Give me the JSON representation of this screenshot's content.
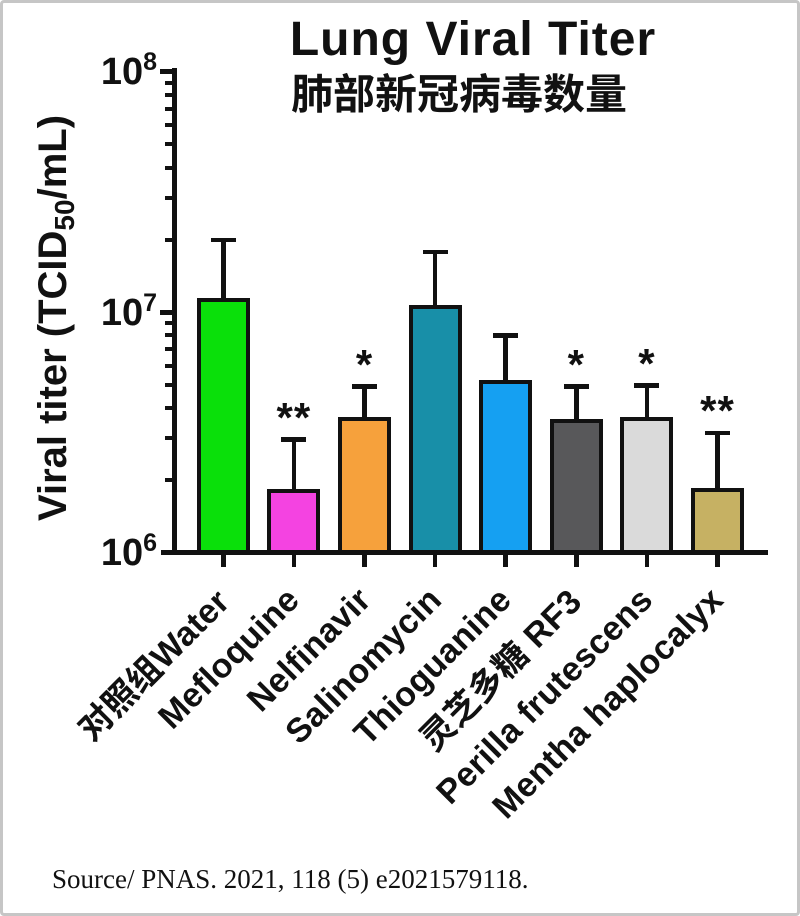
{
  "figure": {
    "source_note": "Source/ PNAS. 2021, 118 (5) e2021579118."
  },
  "y_axis": {
    "label_prefix": "Viral titer (TCID",
    "label_sub": "50",
    "label_suffix": "/mL)",
    "tick_labels": [
      {
        "base": "10",
        "exp": "8",
        "value": 100000000
      },
      {
        "base": "10",
        "exp": "7",
        "value": 10000000
      },
      {
        "base": "10",
        "exp": "6",
        "value": 1000000
      }
    ]
  },
  "chart_data": {
    "type": "bar",
    "title": "Lung Viral Titer",
    "subtitle": "肺部新冠病毒数量",
    "ylabel": "Viral titer (TCID50/mL)",
    "yscale": "log",
    "ylim": [
      1000000,
      100000000
    ],
    "categories": [
      "对照组Water",
      "Mefloquine",
      "Nelfinavir",
      "Salinomycin",
      "Thioguanine",
      "灵芝多糖 RF3",
      "Perilla frutescens",
      "Mentha haplocalyx"
    ],
    "values": [
      11500000,
      1840000,
      3660000,
      10700000,
      5200000,
      3600000,
      3660000,
      1850000
    ],
    "error_bar_top": [
      20000000,
      2950000,
      4900000,
      17800000,
      8000000,
      4900000,
      4950000,
      3150000
    ],
    "significance": [
      "",
      "**",
      "*",
      "",
      "",
      "*",
      "*",
      "**"
    ],
    "bar_colors": [
      "#0ae00a",
      "#f443e1",
      "#f6a13c",
      "#188fa8",
      "#15a0f2",
      "#58585a",
      "#dadada",
      "#c6b163"
    ],
    "axis_color": "#111111",
    "grid": false,
    "legend": false,
    "source": "Source/ PNAS. 2021, 118 (5) e2021579118."
  }
}
